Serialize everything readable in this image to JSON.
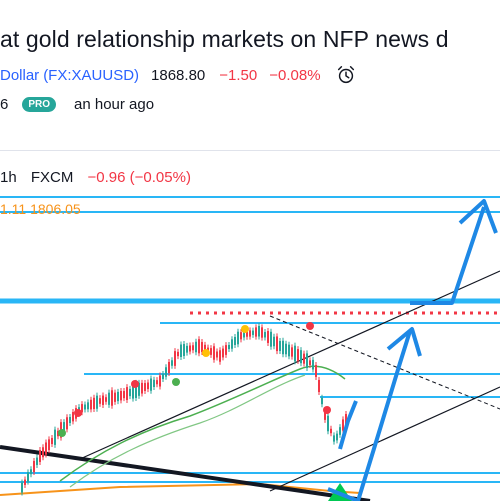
{
  "idea": {
    "title": "at gold relationship markets on NFP news d",
    "symbol_name": "Dollar",
    "ticker": "(FX:XAUUSD)",
    "price": "1868.80",
    "change": "−1.50",
    "change_pct": "−0.08%",
    "author_suffix": "6",
    "badge": "PRO",
    "time_ago": "an hour ago"
  },
  "chart": {
    "interval": "1h",
    "source": "FXCM",
    "change_text": "−0.96 (−0.05%)",
    "level_text": "1.11 1806.05",
    "colors": {
      "up": "#26a69a",
      "down": "#f23645",
      "level_line": "#29b6f6",
      "trend_line": "#000000",
      "arrow": "#1e88e5",
      "ma": "#4caf50",
      "orange_line": "#f7931a"
    }
  }
}
